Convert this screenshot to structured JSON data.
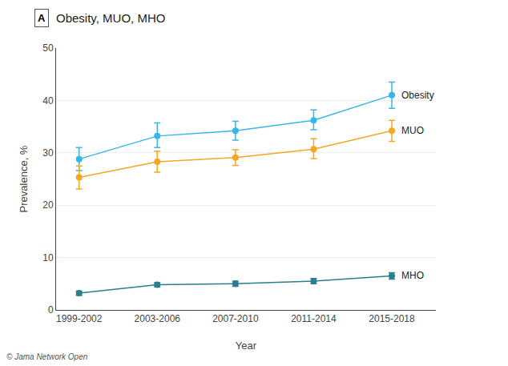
{
  "chart_data": {
    "type": "line",
    "title": "Obesity, MUO, MHO",
    "xlabel": "Year",
    "ylabel": "Prevalence, %",
    "categories": [
      "1999-2002",
      "2003-2006",
      "2007-2010",
      "2011-2014",
      "2015-2018"
    ],
    "series": [
      {
        "name": "Obesity",
        "color": "#38b6e8",
        "values": [
          28.8,
          33.2,
          34.2,
          36.2,
          41.0
        ],
        "yerr_lo": [
          2.2,
          2.2,
          1.8,
          1.8,
          2.5
        ],
        "yerr_hi": [
          2.2,
          2.5,
          1.8,
          2.0,
          2.5
        ]
      },
      {
        "name": "MUO",
        "color": "#f5a623",
        "values": [
          25.3,
          28.3,
          29.1,
          30.7,
          34.2
        ],
        "yerr_lo": [
          2.2,
          2.0,
          1.5,
          1.8,
          2.0
        ],
        "yerr_hi": [
          2.2,
          2.0,
          1.5,
          2.0,
          2.0
        ]
      },
      {
        "name": "MHO",
        "color": "#2a7f8f",
        "values": [
          3.2,
          4.8,
          5.0,
          5.5,
          6.5
        ],
        "yerr_lo": [
          0.4,
          0.4,
          0.5,
          0.5,
          0.6
        ],
        "yerr_hi": [
          0.4,
          0.4,
          0.5,
          0.5,
          0.6
        ]
      }
    ],
    "ylim": [
      0,
      50
    ],
    "yticks": [
      0,
      10,
      20,
      30,
      40,
      50
    ],
    "grid": true,
    "marker": "circle",
    "annotations": [
      "A",
      "© Jama Network Open"
    ]
  }
}
